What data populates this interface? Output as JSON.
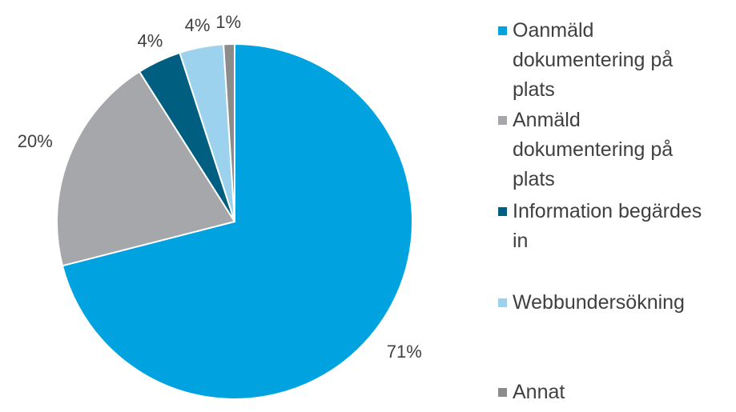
{
  "chart_data": {
    "type": "pie",
    "categories": [
      "Oanmäld dokumentering på plats",
      "Anmäld dokumentering på plats",
      "Information begärdes in",
      "Webbundersökning",
      "Annat"
    ],
    "values": [
      71,
      20,
      4,
      4,
      1
    ],
    "value_labels": [
      "71%",
      "20%",
      "4%",
      "4%",
      "1%"
    ],
    "colors": [
      "#00a3e0",
      "#a5a7aa",
      "#005f80",
      "#9dd2ee",
      "#8c8c8c"
    ],
    "legend": "right"
  }
}
